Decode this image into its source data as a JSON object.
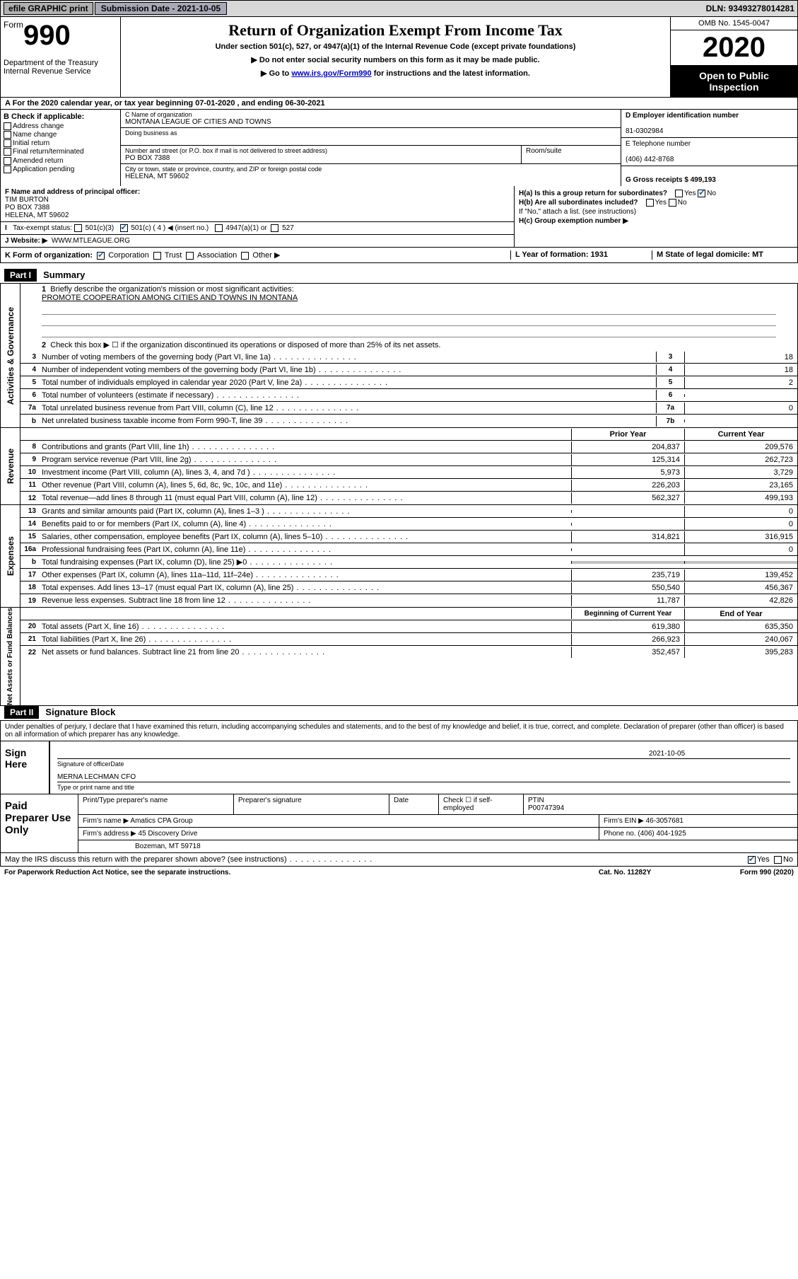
{
  "topbar": {
    "efile": "efile GRAPHIC print",
    "subdate_lbl": "Submission Date - 2021-10-05",
    "dln": "DLN: 93493278014281"
  },
  "hdr": {
    "form": "Form",
    "num": "990",
    "dept": "Department of the Treasury Internal Revenue Service",
    "title": "Return of Organization Exempt From Income Tax",
    "sub": "Under section 501(c), 527, or 4947(a)(1) of the Internal Revenue Code (except private foundations)",
    "l1": "▶ Do not enter social security numbers on this form as it may be made public.",
    "l2a": "▶ Go to ",
    "l2link": "www.irs.gov/Form990",
    "l2b": " for instructions and the latest information.",
    "omb": "OMB No. 1545-0047",
    "year": "2020",
    "open": "Open to Public Inspection"
  },
  "lineA": "A   For the 2020 calendar year, or tax year beginning 07-01-2020     , and ending 06-30-2021",
  "B": {
    "lbl": "B Check if applicable:",
    "i1": "Address change",
    "i2": "Name change",
    "i3": "Initial return",
    "i4": "Final return/terminated",
    "i5": "Amended return",
    "i6": "Application pending"
  },
  "C": {
    "name_lbl": "C Name of organization",
    "name": "MONTANA LEAGUE OF CITIES AND TOWNS",
    "dba": "Doing business as",
    "addr_lbl": "Number and street (or P.O. box if mail is not delivered to street address)",
    "room": "Room/suite",
    "addr": "PO BOX 7388",
    "city_lbl": "City or town, state or province, country, and ZIP or foreign postal code",
    "city": "HELENA, MT  59602"
  },
  "D": {
    "lbl": "D Employer identification number",
    "val": "81-0302984",
    "tel_lbl": "E Telephone number",
    "tel": "(406) 442-8768",
    "gross_lbl": "G Gross receipts $ 499,193"
  },
  "F": {
    "lbl": "F  Name and address of principal officer:",
    "name": "TIM BURTON",
    "addr1": "PO BOX 7388",
    "addr2": "HELENA, MT  59602",
    "tax_lbl": "Tax-exempt status:",
    "t1": "501(c)(3)",
    "t2": "501(c) ( 4 ) ◀ (insert no.)",
    "t3": "4947(a)(1) or",
    "t4": "527",
    "web_lbl": "J      Website: ▶",
    "web": "WWW.MTLEAGUE.ORG"
  },
  "H": {
    "ha": "H(a)  Is this a group return for subordinates?",
    "hb": "H(b)  Are all subordinates included?",
    "hbn": "If \"No,\" attach a list. (see instructions)",
    "hc": "H(c)  Group exemption number ▶",
    "yes": "Yes",
    "no": "No"
  },
  "K": {
    "lbl": "K Form of organization:",
    "o1": "Corporation",
    "o2": "Trust",
    "o3": "Association",
    "o4": "Other ▶",
    "L": "L Year of formation: 1931",
    "M": "M State of legal domicile: MT"
  },
  "part1": {
    "hdr": "Part I",
    "title": "Summary",
    "q1": "Briefly describe the organization's mission or most significant activities:",
    "mission": "PROMOTE COOPERATION AMONG CITIES AND TOWNS IN MONTANA",
    "q2": "Check this box ▶ ☐  if the organization discontinued its operations or disposed of more than 25% of its net assets.",
    "rows_gov": [
      {
        "n": "3",
        "d": "Number of voting members of the governing body (Part VI, line 1a)",
        "b": "3",
        "v": "18"
      },
      {
        "n": "4",
        "d": "Number of independent voting members of the governing body (Part VI, line 1b)",
        "b": "4",
        "v": "18"
      },
      {
        "n": "5",
        "d": "Total number of individuals employed in calendar year 2020 (Part V, line 2a)",
        "b": "5",
        "v": "2"
      },
      {
        "n": "6",
        "d": "Total number of volunteers (estimate if necessary)",
        "b": "6",
        "v": ""
      },
      {
        "n": "7a",
        "d": "Total unrelated business revenue from Part VIII, column (C), line 12",
        "b": "7a",
        "v": "0"
      },
      {
        "n": "b",
        "d": "Net unrelated business taxable income from Form 990-T, line 39",
        "b": "7b",
        "v": ""
      }
    ],
    "hdr_prior": "Prior Year",
    "hdr_curr": "Current Year",
    "rows_rev": [
      {
        "n": "8",
        "d": "Contributions and grants (Part VIII, line 1h)",
        "p": "204,837",
        "c": "209,576"
      },
      {
        "n": "9",
        "d": "Program service revenue (Part VIII, line 2g)",
        "p": "125,314",
        "c": "262,723"
      },
      {
        "n": "10",
        "d": "Investment income (Part VIII, column (A), lines 3, 4, and 7d )",
        "p": "5,973",
        "c": "3,729"
      },
      {
        "n": "11",
        "d": "Other revenue (Part VIII, column (A), lines 5, 6d, 8c, 9c, 10c, and 11e)",
        "p": "226,203",
        "c": "23,165"
      },
      {
        "n": "12",
        "d": "Total revenue—add lines 8 through 11 (must equal Part VIII, column (A), line 12)",
        "p": "562,327",
        "c": "499,193"
      }
    ],
    "rows_exp": [
      {
        "n": "13",
        "d": "Grants and similar amounts paid (Part IX, column (A), lines 1–3 )",
        "p": "",
        "c": "0"
      },
      {
        "n": "14",
        "d": "Benefits paid to or for members (Part IX, column (A), line 4)",
        "p": "",
        "c": "0"
      },
      {
        "n": "15",
        "d": "Salaries, other compensation, employee benefits (Part IX, column (A), lines 5–10)",
        "p": "314,821",
        "c": "316,915"
      },
      {
        "n": "16a",
        "d": "Professional fundraising fees (Part IX, column (A), line 11e)",
        "p": "",
        "c": "0"
      },
      {
        "n": "b",
        "d": "Total fundraising expenses (Part IX, column (D), line 25) ▶0",
        "p": "shaded",
        "c": "shaded"
      },
      {
        "n": "17",
        "d": "Other expenses (Part IX, column (A), lines 11a–11d, 11f–24e)",
        "p": "235,719",
        "c": "139,452"
      },
      {
        "n": "18",
        "d": "Total expenses. Add lines 13–17 (must equal Part IX, column (A), line 25)",
        "p": "550,540",
        "c": "456,367"
      },
      {
        "n": "19",
        "d": "Revenue less expenses. Subtract line 18 from line 12",
        "p": "11,787",
        "c": "42,826"
      }
    ],
    "hdr_beg": "Beginning of Current Year",
    "hdr_end": "End of Year",
    "rows_net": [
      {
        "n": "20",
        "d": "Total assets (Part X, line 16)",
        "p": "619,380",
        "c": "635,350"
      },
      {
        "n": "21",
        "d": "Total liabilities (Part X, line 26)",
        "p": "266,923",
        "c": "240,067"
      },
      {
        "n": "22",
        "d": "Net assets or fund balances. Subtract line 21 from line 20",
        "p": "352,457",
        "c": "395,283"
      }
    ],
    "vtab_gov": "Activities & Governance",
    "vtab_rev": "Revenue",
    "vtab_exp": "Expenses",
    "vtab_net": "Net Assets or Fund Balances"
  },
  "part2": {
    "hdr": "Part II",
    "title": "Signature Block",
    "decl": "Under penalties of perjury, I declare that I have examined this return, including accompanying schedules and statements, and to the best of my knowledge and belief, it is true, correct, and complete. Declaration of preparer (other than officer) is based on all information of which preparer has any knowledge.",
    "sign_here": "Sign Here",
    "sig_off": "Signature of officer",
    "sig_date": "Date",
    "sig_date_v": "2021-10-05",
    "officer": "MERNA LECHMAN  CFO",
    "type_name": "Type or print name and title",
    "paid": "Paid Preparer Use Only",
    "p_name": "Print/Type preparer's name",
    "p_sig": "Preparer's signature",
    "p_date": "Date",
    "p_check": "Check ☐ if self-employed",
    "p_ptin_l": "PTIN",
    "p_ptin": "P00747394",
    "firm_l": "Firm's name      ▶",
    "firm": "Amatics CPA Group",
    "ein_l": "Firm's EIN ▶",
    "ein": "46-3057681",
    "addr_l": "Firm's address ▶",
    "addr": "45 Discovery Drive",
    "addr2": "Bozeman, MT  59718",
    "phone_l": "Phone no.",
    "phone": "(406) 404-1925"
  },
  "bottom": {
    "q": "May the IRS discuss this return with the preparer shown above? (see instructions)",
    "yes": "Yes",
    "no": "No"
  },
  "footer": {
    "l": "For Paperwork Reduction Act Notice, see the separate instructions.",
    "m": "Cat. No. 11282Y",
    "r": "Form 990 (2020)"
  }
}
